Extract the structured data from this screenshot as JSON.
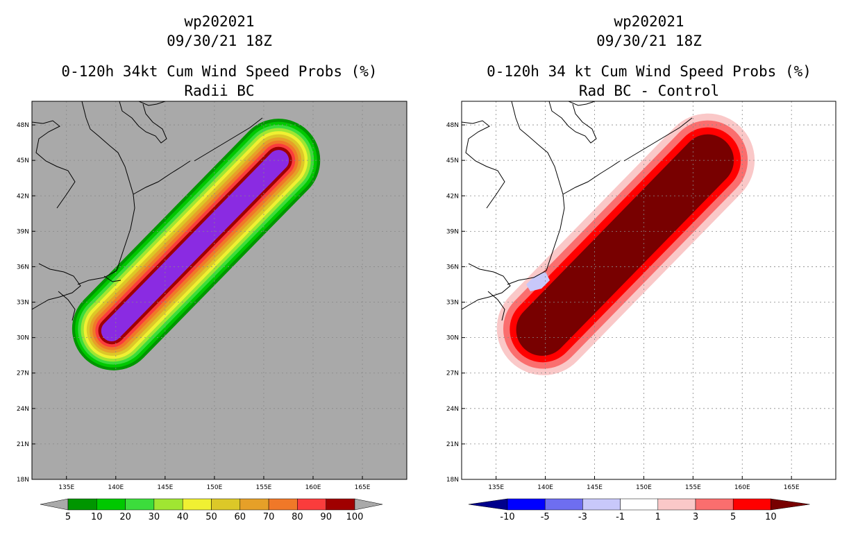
{
  "chart_data": [
    {
      "type": "heatmap",
      "storm_id": "wp202021",
      "date": "09/30/21 18Z",
      "title": "0-120h 34kt Cum Wind Speed Probs (%)",
      "subtitle": "Radii BC",
      "x_ticks": [
        "135E",
        "140E",
        "145E",
        "150E",
        "155E",
        "160E",
        "165E"
      ],
      "y_ticks": [
        "48N",
        "45N",
        "42N",
        "39N",
        "36N",
        "33N",
        "30N",
        "27N",
        "24N",
        "21N",
        "18N"
      ],
      "xlim": [
        131.5,
        169.5
      ],
      "ylim": [
        18,
        50
      ],
      "background": "#a9a9a9",
      "legend_levels": [
        "5",
        "10",
        "20",
        "30",
        "40",
        "50",
        "60",
        "70",
        "80",
        "90",
        "100"
      ],
      "legend_colors": [
        "#009600",
        "#00c800",
        "#3cdc3c",
        "#a0e632",
        "#f0f032",
        "#dcc828",
        "#e6a028",
        "#f07828",
        "#fa3c3c",
        "#a00000",
        "#8a2be2"
      ],
      "band_values": [
        5,
        10,
        20,
        30,
        40,
        50,
        60,
        70,
        80,
        90,
        100
      ],
      "band_colors": [
        "#009600",
        "#00c800",
        "#3cdc3c",
        "#a0e632",
        "#f0f032",
        "#dcc828",
        "#e6a028",
        "#f07828",
        "#fa3c3c",
        "#a00000",
        "#8a2be2"
      ]
    },
    {
      "type": "heatmap",
      "storm_id": "wp202021",
      "date": "09/30/21 18Z",
      "title": "0-120h 34 kt Cum Wind Speed Probs (%)",
      "subtitle": "Rad BC - Control",
      "x_ticks": [
        "135E",
        "140E",
        "145E",
        "150E",
        "155E",
        "160E",
        "165E"
      ],
      "y_ticks": [
        "48N",
        "45N",
        "42N",
        "39N",
        "36N",
        "33N",
        "30N",
        "27N",
        "24N",
        "21N",
        "18N"
      ],
      "xlim": [
        131.5,
        169.5
      ],
      "ylim": [
        18,
        50
      ],
      "background": "#ffffff",
      "legend_levels": [
        "-10",
        "-5",
        "-3",
        "-1",
        "1",
        "3",
        "5",
        "10"
      ],
      "legend_colors": [
        "#00008b",
        "#0000ff",
        "#6e6ef0",
        "#c8c8fa",
        "#ffffff",
        "#fac8c8",
        "#fa6e6e",
        "#ff0000",
        "#780000"
      ],
      "band_values": [
        1,
        3,
        5,
        10
      ],
      "band_colors": [
        "#fac8c8",
        "#fa6e6e",
        "#ff0000",
        "#780000"
      ]
    }
  ]
}
